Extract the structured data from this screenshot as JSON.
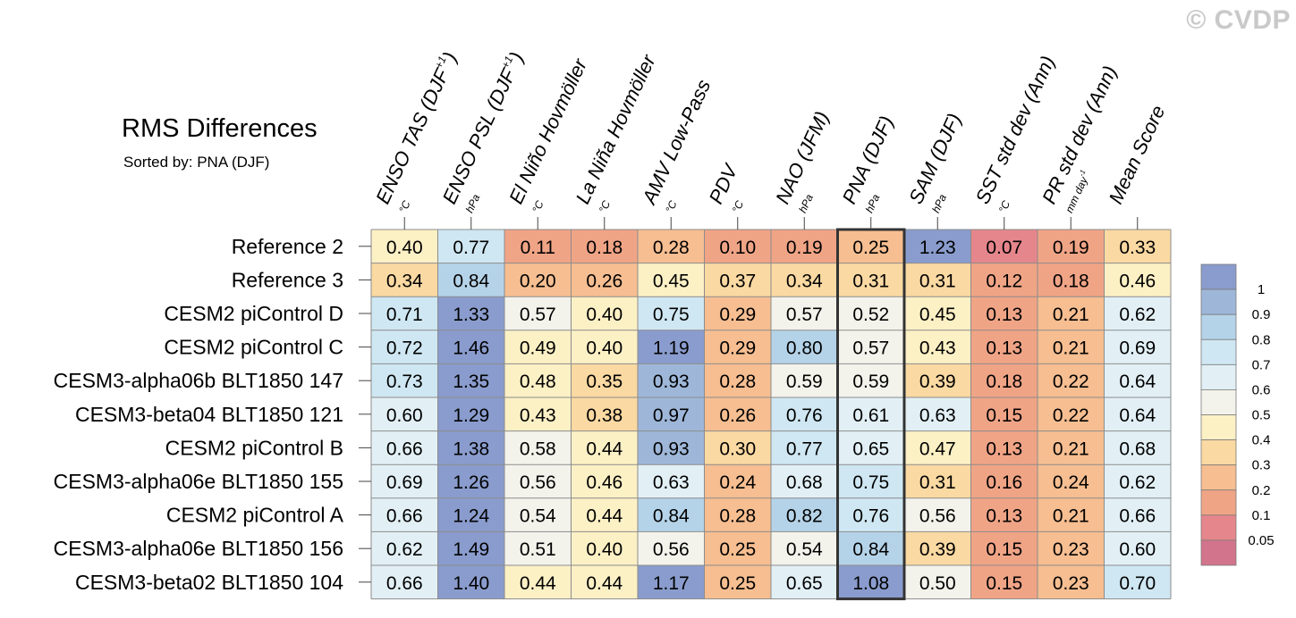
{
  "watermark": "© CVDP",
  "title": "RMS Differences",
  "subtitle": "Sorted by: PNA (DJF)",
  "colors": {
    "scale": [
      "#d2748c",
      "#e5868c",
      "#f0a486",
      "#f6be91",
      "#fad9a2",
      "#fcf0c5",
      "#f3f3ec",
      "#e2f0f6",
      "#cfe7f2",
      "#b5d3e8",
      "#9eb7d9",
      "#8a9ccd"
    ],
    "highlight_border": "#333333",
    "grid": "#8c8c8c"
  },
  "chart_data": {
    "type": "heatmap",
    "highlight_column": "PNA (DJF)",
    "columns": [
      {
        "name": "ENSO TAS (DJF",
        "sup": "+1",
        "close": ")",
        "unit": "°C"
      },
      {
        "name": "ENSO PSL (DJF",
        "sup": "+1",
        "close": ")",
        "unit": "hPa"
      },
      {
        "name": "El Niño Hovmöller",
        "unit": "°C"
      },
      {
        "name": "La Niña Hovmöller",
        "unit": "°C"
      },
      {
        "name": "AMV Low-Pass",
        "unit": "°C"
      },
      {
        "name": "PDV",
        "unit": "°C"
      },
      {
        "name": "NAO (JFM)",
        "unit": "hPa"
      },
      {
        "name": "PNA (DJF)",
        "unit": "hPa"
      },
      {
        "name": "SAM (DJF)",
        "unit": "hPa"
      },
      {
        "name": "SST std dev (Ann)",
        "unit": "°C"
      },
      {
        "name": "PR std dev (Ann)",
        "unit": "mm day",
        "unit_sup": "-1"
      },
      {
        "name": "Mean Score",
        "unit": ""
      }
    ],
    "rows": [
      "Reference 2",
      "Reference 3",
      "CESM2 piControl D",
      "CESM2 piControl C",
      "CESM3-alpha06b BLT1850 147",
      "CESM3-beta04 BLT1850 121",
      "CESM2 piControl B",
      "CESM3-alpha06e BLT1850 155",
      "CESM2 piControl A",
      "CESM3-alpha06e BLT1850 156",
      "CESM3-beta02 BLT1850 104"
    ],
    "values": [
      [
        "0.40",
        "0.77",
        "0.11",
        "0.18",
        "0.28",
        "0.10",
        "0.19",
        "0.25",
        "1.23",
        "0.07",
        "0.19",
        "0.33"
      ],
      [
        "0.34",
        "0.84",
        "0.20",
        "0.26",
        "0.45",
        "0.37",
        "0.34",
        "0.31",
        "0.31",
        "0.12",
        "0.18",
        "0.46"
      ],
      [
        "0.71",
        "1.33",
        "0.57",
        "0.40",
        "0.75",
        "0.29",
        "0.57",
        "0.52",
        "0.45",
        "0.13",
        "0.21",
        "0.62"
      ],
      [
        "0.72",
        "1.46",
        "0.49",
        "0.40",
        "1.19",
        "0.29",
        "0.80",
        "0.57",
        "0.43",
        "0.13",
        "0.21",
        "0.69"
      ],
      [
        "0.73",
        "1.35",
        "0.48",
        "0.35",
        "0.93",
        "0.28",
        "0.59",
        "0.59",
        "0.39",
        "0.18",
        "0.22",
        "0.64"
      ],
      [
        "0.60",
        "1.29",
        "0.43",
        "0.38",
        "0.97",
        "0.26",
        "0.76",
        "0.61",
        "0.63",
        "0.15",
        "0.22",
        "0.64"
      ],
      [
        "0.66",
        "1.38",
        "0.58",
        "0.44",
        "0.93",
        "0.30",
        "0.77",
        "0.65",
        "0.47",
        "0.13",
        "0.21",
        "0.68"
      ],
      [
        "0.69",
        "1.26",
        "0.56",
        "0.46",
        "0.63",
        "0.24",
        "0.68",
        "0.75",
        "0.31",
        "0.16",
        "0.24",
        "0.62"
      ],
      [
        "0.66",
        "1.24",
        "0.54",
        "0.44",
        "0.84",
        "0.28",
        "0.82",
        "0.76",
        "0.56",
        "0.13",
        "0.21",
        "0.66"
      ],
      [
        "0.62",
        "1.49",
        "0.51",
        "0.40",
        "0.56",
        "0.25",
        "0.54",
        "0.84",
        "0.39",
        "0.15",
        "0.23",
        "0.60"
      ],
      [
        "0.66",
        "1.40",
        "0.44",
        "0.44",
        "1.17",
        "0.25",
        "0.65",
        "1.08",
        "0.50",
        "0.15",
        "0.23",
        "0.70"
      ]
    ],
    "colorbar": {
      "boundaries": [
        0,
        0.05,
        0.1,
        0.2,
        0.3,
        0.4,
        0.5,
        0.6,
        0.7,
        0.8,
        0.9,
        1
      ],
      "labels": [
        "1",
        "0.9",
        "0.8",
        "0.7",
        "0.6",
        "0.5",
        "0.4",
        "0.3",
        "0.2",
        "0.1",
        "0.05"
      ]
    }
  }
}
